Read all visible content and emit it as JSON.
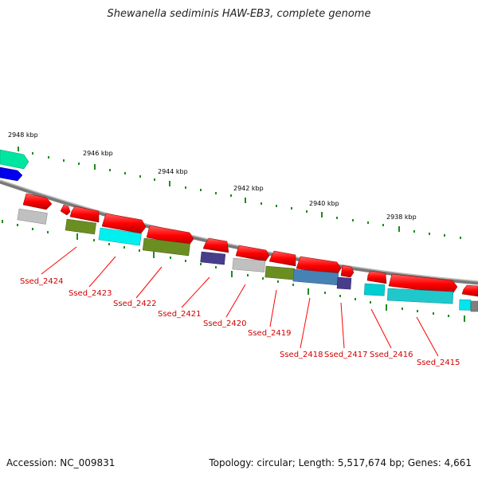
{
  "title": "Shewanella sediminis HAW-EB3, complete genome",
  "accession": "Accession: NC_009831",
  "summary": "Topology: circular; Length: 5,517,674 bp; Genes: 4,661",
  "kbp_labels": [
    "2948 kbp",
    "2946 kbp",
    "2944 kbp",
    "2942 kbp",
    "2940 kbp",
    "2938 kbp"
  ],
  "gene_labels": [
    "Ssed_2424",
    "Ssed_2423",
    "Ssed_2422",
    "Ssed_2421",
    "Ssed_2420",
    "Ssed_2419",
    "Ssed_2418",
    "Ssed_2417",
    "Ssed_2416",
    "Ssed_2415"
  ],
  "colors": {
    "cds": "#ff0000",
    "label": "#d00000",
    "tick": "#228b22",
    "backbone": "#808080",
    "olive": "#6b8e23",
    "cyan": "#00e5ee",
    "purple": "#483d8b",
    "steelblue": "#4682b4",
    "grey": "#c0c0c0",
    "teal": "#00ced1",
    "green": "#00e5a0",
    "blue": "#0000ee"
  }
}
